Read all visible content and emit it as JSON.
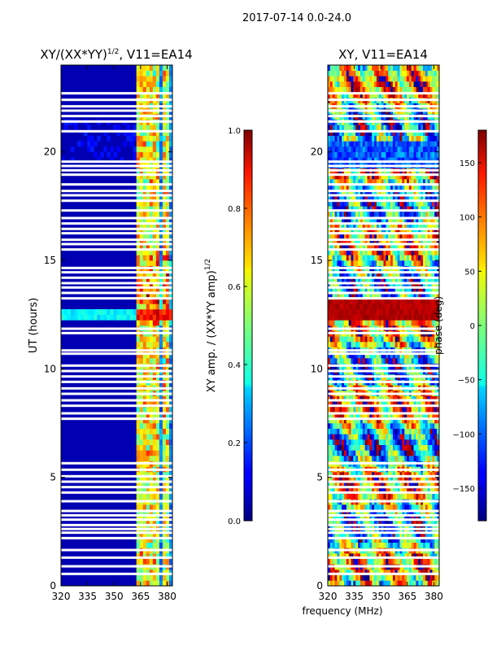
{
  "chart_data": {
    "suptitle": "2017-07-14 0.0-24.0",
    "common_xlabel": "frequency (MHz)",
    "panels": [
      {
        "id": "left",
        "type": "heatmap",
        "title_main": "XY/(XX*YY)",
        "title_sup": "1/2",
        "title_rest": ", V11=EA14",
        "ylabel": "UT (hours)",
        "xlim": [
          320,
          383
        ],
        "ylim": [
          0,
          24
        ],
        "xticks": [
          320,
          335,
          350,
          365,
          380
        ],
        "xtick_labels": [
          "320",
          "335",
          "350",
          "365",
          "380"
        ],
        "yticks": [
          0,
          5,
          10,
          15,
          20
        ],
        "ytick_labels": [
          "0",
          "5",
          "10",
          "15",
          "20"
        ],
        "colorbar": {
          "label_main": "XY amp. / (XX*YY amp)",
          "label_sup": "1/2",
          "range": [
            0.0,
            1.0
          ],
          "ticks": [
            0.0,
            0.2,
            0.4,
            0.6,
            0.8,
            1.0
          ],
          "tick_labels": [
            "0.0",
            "0.2",
            "0.4",
            "0.6",
            "0.8",
            "1.0"
          ]
        }
      },
      {
        "id": "right",
        "type": "heatmap",
        "title": "XY, V11=EA14",
        "xlim": [
          320,
          383
        ],
        "ylim": [
          0,
          24
        ],
        "xticks": [
          320,
          335,
          350,
          365,
          380
        ],
        "xtick_labels": [
          "320",
          "335",
          "350",
          "365",
          "380"
        ],
        "yticks": [
          0,
          5,
          10,
          15,
          20
        ],
        "ytick_labels": [
          "0",
          "5",
          "10",
          "15",
          "20"
        ],
        "colorbar": {
          "label": "phase (deg)",
          "range": [
            -180,
            180
          ],
          "ticks": [
            -150,
            -100,
            -50,
            0,
            50,
            100,
            150
          ],
          "tick_labels": [
            "−150",
            "−100",
            "−50",
            "0",
            "50",
            "100",
            "150"
          ]
        }
      }
    ],
    "flagged_hours": [
      0.55,
      0.9,
      1.3,
      1.65,
      2.2,
      2.45,
      2.62,
      2.8,
      3.05,
      3.25,
      3.45,
      3.9,
      4.3,
      4.55,
      4.8,
      5.05,
      5.35,
      5.65,
      7.7,
      7.95,
      8.3,
      8.55,
      8.85,
      9.1,
      9.4,
      9.65,
      9.9,
      10.15,
      10.7,
      10.85,
      11.65,
      11.85,
      13.25,
      13.5,
      13.75,
      13.95,
      14.2,
      14.45,
      14.65,
      15.5,
      15.75,
      15.95,
      16.25,
      16.45,
      16.7,
      16.95,
      17.3,
      17.75,
      18.0,
      18.2,
      18.5,
      18.95,
      19.15,
      19.35,
      19.55,
      20.95,
      21.4,
      21.65,
      21.9,
      22.1,
      22.4,
      22.7
    ],
    "amp_bright_channels_mhz": [
      364.2,
      365.5,
      367.0,
      369.0,
      371.5,
      373.0,
      375.0,
      378.0,
      380.5
    ],
    "amp_hot_band_hours": [
      12.2,
      12.8
    ]
  }
}
